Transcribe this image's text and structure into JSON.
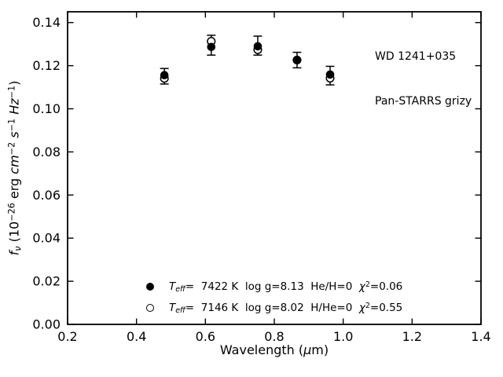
{
  "figure": {
    "background": "#ffffff",
    "foreground": "#000000",
    "annotation": {
      "line1": "WD 1241+035",
      "line2": "Pan-STARRS grizy"
    },
    "xlabel": {
      "pre": "Wavelength (",
      "mu": "μ",
      "post": "m)"
    },
    "ylabel": {
      "f": "f",
      "nu": "ν",
      "open_paren": " (10",
      "exp_26": "−26",
      "erg": " erg ",
      "cm": "cm",
      "exp_2": "−2",
      "sp1": " ",
      "s": "s",
      "exp_1a": "−1",
      "sp2": " ",
      "hz": "Hz",
      "exp_1b": "−1",
      "close_paren": ")"
    }
  },
  "legend": {
    "rows": [
      {
        "marker": "filled-circle",
        "t": "T",
        "t_sub": "eff",
        "mid": "=  7422 K  log g=8.13  He/H=0  ",
        "chi": "χ",
        "chi_sup": "2",
        "tail": "=0.06"
      },
      {
        "marker": "open-circle",
        "t": "T",
        "t_sub": "eff",
        "mid": "=  7146 K  log g=8.02  H/He=0  ",
        "chi": "χ",
        "chi_sup": "2",
        "tail": "=0.55"
      }
    ]
  },
  "chart_data": {
    "type": "scatter",
    "title": "",
    "xlabel": "Wavelength (μm)",
    "ylabel": "f_ν (10^−26 erg cm^−2 s^−1 Hz^−1)",
    "xlim": [
      0.2,
      1.4
    ],
    "ylim": [
      0.0,
      0.145
    ],
    "xticks": [
      0.2,
      0.4,
      0.6,
      0.8,
      1.0,
      1.2,
      1.4
    ],
    "xtick_labels": [
      "0.2",
      "0.4",
      "0.6",
      "0.8",
      "1.0",
      "1.2",
      "1.4"
    ],
    "yticks": [
      0.0,
      0.02,
      0.04,
      0.06,
      0.08,
      0.1,
      0.12,
      0.14
    ],
    "ytick_labels": [
      "0.00",
      "0.02",
      "0.04",
      "0.06",
      "0.08",
      "0.10",
      "0.12",
      "0.14"
    ],
    "grid": false,
    "legend_position": "lower-center-inside",
    "bands": [
      "g",
      "r",
      "i",
      "z",
      "y"
    ],
    "x": [
      0.481,
      0.617,
      0.752,
      0.866,
      0.962
    ],
    "series": [
      {
        "name": "Teff = 7422 K, log g = 8.13, He/H = 0, chi2 = 0.06",
        "marker": "filled-circle",
        "teff_k": 7422,
        "log_g": 8.13,
        "composition": "He/H=0",
        "chi2": 0.06,
        "values": [
          0.1156,
          0.1287,
          0.129,
          0.1226,
          0.1159
        ]
      },
      {
        "name": "Teff = 7146 K, log g = 8.02, H/He = 0, chi2 = 0.55",
        "marker": "open-circle",
        "teff_k": 7146,
        "log_g": 8.02,
        "composition": "H/He=0",
        "chi2": 0.55,
        "values": [
          0.1141,
          0.1313,
          0.1274,
          0.1226,
          0.1142
        ]
      }
    ],
    "errorbars": {
      "centers": [
        0.1151,
        0.1295,
        0.1293,
        0.1226,
        0.1154
      ],
      "errors": [
        0.0036,
        0.0046,
        0.0044,
        0.0036,
        0.0043
      ]
    }
  }
}
